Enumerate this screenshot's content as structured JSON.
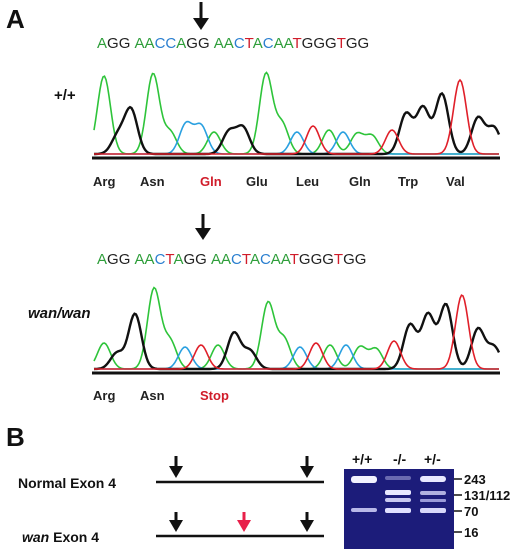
{
  "panel_a": {
    "label": "A",
    "wt": {
      "genotype": "+/+",
      "sequence": [
        {
          "b": "A",
          "c": "#2e9e3a"
        },
        {
          "b": "G",
          "c": "#222"
        },
        {
          "b": "G",
          "c": "#222"
        },
        {
          "b": " ",
          "c": "#000"
        },
        {
          "b": "A",
          "c": "#2e9e3a"
        },
        {
          "b": "A",
          "c": "#2e9e3a"
        },
        {
          "b": "C",
          "c": "#2a7fd0"
        },
        {
          "b": "C",
          "c": "#2a7fd0"
        },
        {
          "b": "A",
          "c": "#2e9e3a"
        },
        {
          "b": "G",
          "c": "#222"
        },
        {
          "b": "G",
          "c": "#222"
        },
        {
          "b": " ",
          "c": "#000"
        },
        {
          "b": "A",
          "c": "#2e9e3a"
        },
        {
          "b": "A",
          "c": "#2e9e3a"
        },
        {
          "b": "C",
          "c": "#2a7fd0"
        },
        {
          "b": "T",
          "c": "#d01c2a"
        },
        {
          "b": "A",
          "c": "#2e9e3a"
        },
        {
          "b": "C",
          "c": "#2a7fd0"
        },
        {
          "b": "A",
          "c": "#2e9e3a"
        },
        {
          "b": "A",
          "c": "#2e9e3a"
        },
        {
          "b": "T",
          "c": "#d01c2a"
        },
        {
          "b": "G",
          "c": "#222"
        },
        {
          "b": "G",
          "c": "#222"
        },
        {
          "b": "G",
          "c": "#222"
        },
        {
          "b": "T",
          "c": "#d01c2a"
        },
        {
          "b": "G",
          "c": "#222"
        },
        {
          "b": "G",
          "c": "#222"
        }
      ],
      "amino_acids": [
        {
          "t": "Arg",
          "red": false
        },
        {
          "t": "Asn",
          "red": false
        },
        {
          "t": "Gln",
          "red": true
        },
        {
          "t": "Glu",
          "red": false
        },
        {
          "t": "Leu",
          "red": false
        },
        {
          "t": "Gln",
          "red": false
        },
        {
          "t": "Trp",
          "red": false
        },
        {
          "t": "Val",
          "red": false
        }
      ]
    },
    "mut": {
      "genotype": "wan/wan",
      "sequence": [
        {
          "b": "A",
          "c": "#2e9e3a"
        },
        {
          "b": "G",
          "c": "#222"
        },
        {
          "b": "G",
          "c": "#222"
        },
        {
          "b": " ",
          "c": "#000"
        },
        {
          "b": "A",
          "c": "#2e9e3a"
        },
        {
          "b": "A",
          "c": "#2e9e3a"
        },
        {
          "b": "C",
          "c": "#2a7fd0"
        },
        {
          "b": "T",
          "c": "#d01c2a"
        },
        {
          "b": "A",
          "c": "#2e9e3a"
        },
        {
          "b": "G",
          "c": "#222"
        },
        {
          "b": "G",
          "c": "#222"
        },
        {
          "b": " ",
          "c": "#000"
        },
        {
          "b": "A",
          "c": "#2e9e3a"
        },
        {
          "b": "A",
          "c": "#2e9e3a"
        },
        {
          "b": "C",
          "c": "#2a7fd0"
        },
        {
          "b": "T",
          "c": "#d01c2a"
        },
        {
          "b": "A",
          "c": "#2e9e3a"
        },
        {
          "b": "C",
          "c": "#2a7fd0"
        },
        {
          "b": "A",
          "c": "#2e9e3a"
        },
        {
          "b": "A",
          "c": "#2e9e3a"
        },
        {
          "b": "T",
          "c": "#d01c2a"
        },
        {
          "b": "G",
          "c": "#222"
        },
        {
          "b": "G",
          "c": "#222"
        },
        {
          "b": "G",
          "c": "#222"
        },
        {
          "b": "T",
          "c": "#d01c2a"
        },
        {
          "b": "G",
          "c": "#222"
        },
        {
          "b": "G",
          "c": "#222"
        }
      ],
      "amino_acids": [
        {
          "t": "Arg",
          "red": false
        },
        {
          "t": "Asn",
          "red": false
        },
        {
          "t": "Stop",
          "red": true
        }
      ]
    },
    "trace_colors": {
      "A": "#2ec43a",
      "C": "#2aa0e0",
      "G": "#111111",
      "T": "#e0202a"
    }
  },
  "panel_b": {
    "label": "B",
    "normal_exon_label": "Normal Exon 4",
    "wan_label_italic": "wan",
    "wan_label_rest": " Exon 4",
    "colors": {
      "site_arrow": "#111111",
      "new_site_arrow": "#e8204a",
      "gel_bg": "#1c1c7a"
    },
    "gel": {
      "lanes": [
        "+/+",
        "-/-",
        "+/-"
      ],
      "sizes": [
        "243",
        "131/112",
        "70",
        "16"
      ]
    }
  }
}
